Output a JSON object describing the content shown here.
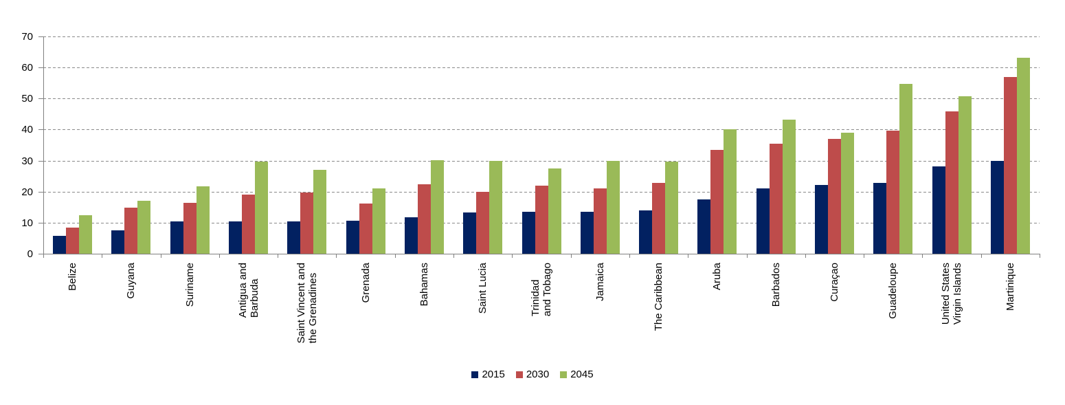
{
  "chart_data": {
    "type": "bar",
    "title": "",
    "xlabel": "",
    "ylabel": "",
    "ylim": [
      0,
      70
    ],
    "yticks": [
      0,
      10,
      20,
      30,
      40,
      50,
      60,
      70
    ],
    "grid": "horizontal-dashed",
    "legend_position": "bottom",
    "categories": [
      "Belize",
      "Guyana",
      "Suriname",
      "Antigua and\nBarbuda",
      "Saint Vincent and\nthe Grenadines",
      "Grenada",
      "Bahamas",
      "Saint Lucia",
      "Trinidad\nand Tobago",
      "Jamaica",
      "The Caribbean",
      "Aruba",
      "Barbados",
      "Curaçao",
      "Guadeloupe",
      "United States\nVirgin Islands",
      "Martinique"
    ],
    "series": [
      {
        "name": "2015",
        "color": "#022161",
        "values": [
          5.8,
          7.5,
          10.5,
          10.4,
          10.5,
          10.7,
          11.7,
          13.2,
          13.5,
          13.6,
          14.0,
          17.4,
          21.0,
          22.1,
          22.8,
          28.2,
          30.0
        ]
      },
      {
        "name": "2030",
        "color": "#BE4C4B",
        "values": [
          8.5,
          14.8,
          16.3,
          19.0,
          19.7,
          16.1,
          22.3,
          20.0,
          21.9,
          21.1,
          22.8,
          33.5,
          35.5,
          37.0,
          39.6,
          45.8,
          57.0
        ]
      },
      {
        "name": "2045",
        "color": "#9ABA58",
        "values": [
          12.5,
          17.0,
          21.8,
          29.6,
          27.0,
          21.0,
          30.2,
          29.8,
          27.4,
          30.0,
          29.7,
          40.2,
          43.3,
          39.0,
          54.8,
          50.8,
          63.2
        ]
      }
    ]
  },
  "colors": {
    "axis": "#808080",
    "grid": "#8a8a8a",
    "text": "#000000",
    "background": "#ffffff"
  }
}
